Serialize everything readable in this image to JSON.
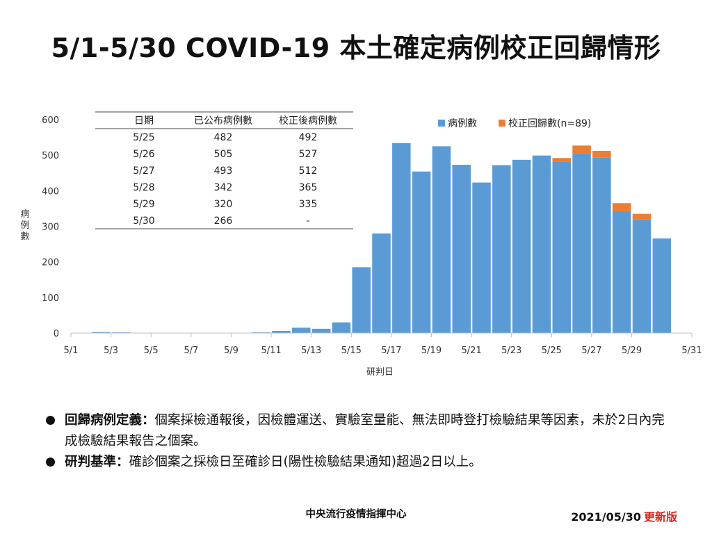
{
  "title": "5/1-5/30 COVID-19 本土確定病例校正回歸情形",
  "colors": {
    "cases": "#5b9bd5",
    "backlog": "#ed7d31",
    "axis": "#bfbfbf",
    "text": "#222222",
    "update": "#d9261c"
  },
  "chart_data": {
    "type": "bar",
    "stacked": true,
    "ylabel": "病例數",
    "xlabel": "研判日",
    "ylim": [
      0,
      600
    ],
    "yticks": [
      0,
      100,
      200,
      300,
      400,
      500,
      600
    ],
    "xticks": [
      "5/1",
      "5/3",
      "5/5",
      "5/7",
      "5/9",
      "5/11",
      "5/13",
      "5/15",
      "5/17",
      "5/19",
      "5/21",
      "5/23",
      "5/25",
      "5/27",
      "5/29",
      "5/31"
    ],
    "grid": false,
    "legend_position": "top-right",
    "categories": [
      "5/1",
      "5/2",
      "5/3",
      "5/4",
      "5/5",
      "5/6",
      "5/7",
      "5/8",
      "5/9",
      "5/10",
      "5/11",
      "5/12",
      "5/13",
      "5/14",
      "5/15",
      "5/16",
      "5/17",
      "5/18",
      "5/19",
      "5/20",
      "5/21",
      "5/22",
      "5/23",
      "5/24",
      "5/25",
      "5/26",
      "5/27",
      "5/28",
      "5/29",
      "5/30"
    ],
    "series": [
      {
        "name": "病例數",
        "color": "#5b9bd5",
        "values": [
          0,
          3,
          2,
          0,
          0,
          0,
          0,
          0,
          0,
          2,
          6,
          15,
          12,
          30,
          185,
          280,
          534,
          454,
          525,
          473,
          423,
          472,
          487,
          499,
          482,
          505,
          493,
          342,
          320,
          266
        ]
      },
      {
        "name": "校正回歸數(n=89)",
        "color": "#ed7d31",
        "values": [
          0,
          0,
          0,
          0,
          0,
          0,
          0,
          0,
          0,
          0,
          0,
          0,
          0,
          0,
          0,
          0,
          0,
          0,
          0,
          0,
          0,
          0,
          0,
          0,
          10,
          22,
          19,
          23,
          15,
          0
        ]
      }
    ],
    "table": {
      "headers": [
        "日期",
        "已公布病例數",
        "校正後病例數"
      ],
      "rows": [
        [
          "5/25",
          "482",
          "492"
        ],
        [
          "5/26",
          "505",
          "527"
        ],
        [
          "5/27",
          "493",
          "512"
        ],
        [
          "5/28",
          "342",
          "365"
        ],
        [
          "5/29",
          "320",
          "335"
        ],
        [
          "5/30",
          "266",
          "-"
        ]
      ]
    }
  },
  "notes": [
    {
      "term": "回歸病例定義：",
      "text": "個案採檢通報後，因檢體運送、實驗室量能、無法即時登打檢驗結果等因素，未於2日內完成檢驗結果報告之個案。"
    },
    {
      "term": "研判基準：",
      "text": "確診個案之採檢日至確診日(陽性檢驗結果通知)超過2日以上。"
    }
  ],
  "footer": {
    "org": "中央流行疫情指揮中心",
    "date": "2021/05/30",
    "update_label": "更新版"
  }
}
